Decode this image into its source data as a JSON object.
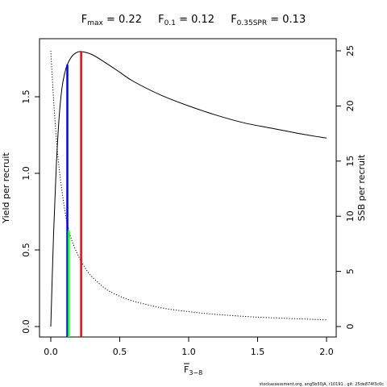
{
  "chart_data": {
    "type": "line",
    "title": {
      "fmax_label": "F",
      "fmax_sub": "max",
      "fmax_value": " = 0.22",
      "f01_label": "F",
      "f01_sub": "0.1",
      "f01_value": " = 0.12",
      "fspr_label": "F",
      "fspr_sub": "0.35SPR",
      "fspr_value": " = 0.13"
    },
    "xlabel": {
      "main": "F",
      "sub": "3−8"
    },
    "ylabel_left": "Yield per recruit",
    "ylabel_right": "SSB per recruit",
    "xlim": [
      0,
      2
    ],
    "ylim_left": [
      0,
      1.8
    ],
    "ylim_right": [
      0,
      25
    ],
    "x_ticks": [
      "0.0",
      "0.5",
      "1.0",
      "1.5",
      "2.0"
    ],
    "x_tick_values": [
      0,
      0.5,
      1.0,
      1.5,
      2.0
    ],
    "y_left_ticks": [
      "0.0",
      "0.5",
      "1.0",
      "1.5"
    ],
    "y_left_tick_values": [
      0,
      0.5,
      1.0,
      1.5
    ],
    "y_right_ticks": [
      "0",
      "5",
      "10",
      "15",
      "20",
      "25"
    ],
    "y_right_tick_values": [
      0,
      5,
      10,
      15,
      20,
      25
    ],
    "series": [
      {
        "name": "Yield per recruit",
        "axis": "left",
        "style": "solid",
        "color": "#000000",
        "x": [
          0,
          0.02,
          0.04,
          0.06,
          0.08,
          0.1,
          0.12,
          0.15,
          0.18,
          0.22,
          0.3,
          0.4,
          0.5,
          0.6,
          0.8,
          1.0,
          1.2,
          1.4,
          1.6,
          1.8,
          2.0
        ],
        "y": [
          0.0,
          0.6,
          1.05,
          1.36,
          1.55,
          1.65,
          1.71,
          1.76,
          1.785,
          1.795,
          1.775,
          1.72,
          1.66,
          1.6,
          1.51,
          1.44,
          1.38,
          1.33,
          1.295,
          1.26,
          1.23
        ]
      },
      {
        "name": "SSB per recruit",
        "axis": "right",
        "style": "dotted",
        "color": "#000000",
        "x": [
          0,
          0.02,
          0.04,
          0.06,
          0.08,
          0.1,
          0.12,
          0.15,
          0.2,
          0.25,
          0.3,
          0.4,
          0.5,
          0.6,
          0.8,
          1.0,
          1.2,
          1.5,
          1.8,
          2.0
        ],
        "y": [
          25.0,
          20.6,
          17.1,
          14.4,
          12.4,
          10.7,
          9.3,
          7.9,
          6.4,
          5.3,
          4.5,
          3.4,
          2.75,
          2.3,
          1.7,
          1.35,
          1.1,
          0.85,
          0.7,
          0.6
        ]
      }
    ],
    "reference_lines": [
      {
        "name": "Fmax",
        "x": 0.22,
        "y_top": 1.795,
        "axis": "left",
        "color": "#ff0000"
      },
      {
        "name": "F0.1",
        "x": 0.12,
        "y_top": 1.71,
        "axis": "left",
        "color": "#0000ff"
      },
      {
        "name": "F0.35SPR",
        "x": 0.13,
        "y_top": 8.7,
        "axis": "right",
        "color": "#00ff00"
      }
    ],
    "grid": false,
    "footer": "stockassessment.org, ang5b50jA, r10191 , git: 25de874f3c0c"
  }
}
